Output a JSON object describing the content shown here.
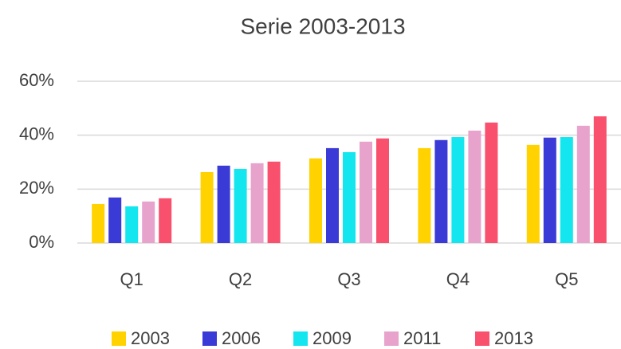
{
  "chart_data": {
    "type": "bar",
    "title": "Serie 2003-2013",
    "categories": [
      "Q1",
      "Q2",
      "Q3",
      "Q4",
      "Q5"
    ],
    "series": [
      {
        "name": "2003",
        "color": "#ffd200",
        "values": [
          14.5,
          26.3,
          31.4,
          35.2,
          36.4
        ]
      },
      {
        "name": "2006",
        "color": "#3a3ad6",
        "values": [
          16.9,
          28.7,
          35.2,
          38.2,
          39.1
        ]
      },
      {
        "name": "2009",
        "color": "#13e6ef",
        "values": [
          13.6,
          27.5,
          33.7,
          39.3,
          39.3
        ]
      },
      {
        "name": "2011",
        "color": "#e8a3cc",
        "values": [
          15.4,
          29.6,
          37.6,
          41.7,
          43.5
        ]
      },
      {
        "name": "2013",
        "color": "#f9506e",
        "values": [
          16.6,
          30.2,
          38.8,
          44.7,
          47.0
        ]
      }
    ],
    "ylim": [
      0,
      60
    ],
    "yticks": [
      {
        "value": 0,
        "label": "0%"
      },
      {
        "value": 20,
        "label": "20%"
      },
      {
        "value": 40,
        "label": "40%"
      },
      {
        "value": 60,
        "label": "60%"
      }
    ],
    "grid": true,
    "legend": "bottom"
  }
}
